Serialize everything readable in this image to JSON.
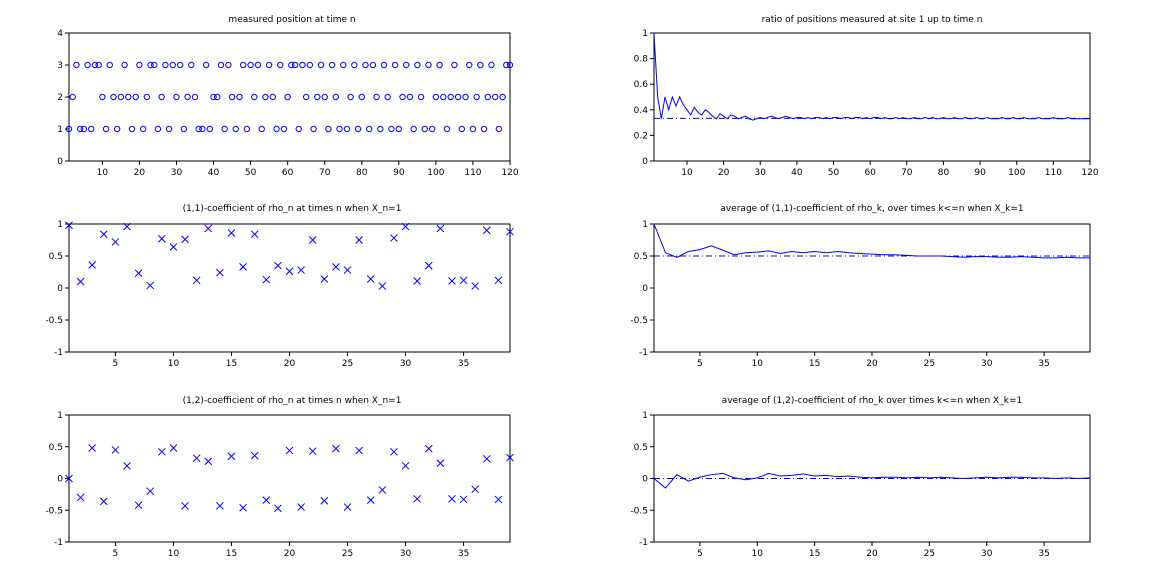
{
  "figure": {
    "colors": {
      "series": "#0000ff",
      "axes": "#000000",
      "background": "#ffffff"
    }
  },
  "chart_data": [
    {
      "id": "p1",
      "type": "scatter",
      "marker": "circle",
      "title": "measured position at time n",
      "xlim": [
        1,
        120
      ],
      "ylim": [
        0,
        4
      ],
      "xticks": [
        10,
        20,
        30,
        40,
        50,
        60,
        70,
        80,
        90,
        100,
        110,
        120
      ],
      "xtick_labels": [
        "10",
        "20",
        "30",
        "40",
        "50",
        "60",
        "70",
        "80",
        "90",
        "100",
        "110",
        "120"
      ],
      "yticks": [
        0,
        1,
        2,
        3,
        4
      ],
      "ytick_labels": [
        "0",
        "1",
        "2",
        "3",
        "4"
      ],
      "x_start": 1,
      "values": [
        1,
        2,
        3,
        1,
        1,
        3,
        1,
        3,
        3,
        2,
        1,
        3,
        2,
        1,
        2,
        3,
        2,
        1,
        2,
        3,
        1,
        2,
        3,
        3,
        1,
        2,
        3,
        1,
        3,
        2,
        3,
        1,
        2,
        3,
        2,
        1,
        1,
        3,
        1,
        2,
        2,
        3,
        1,
        3,
        2,
        1,
        2,
        3,
        1,
        3,
        2,
        3,
        1,
        2,
        3,
        2,
        1,
        3,
        1,
        2,
        3,
        3,
        1,
        3,
        2,
        3,
        1,
        2,
        3,
        2,
        1,
        3,
        2,
        1,
        3,
        1,
        2,
        3,
        1,
        2,
        3,
        1,
        3,
        2,
        1,
        3,
        2,
        1,
        3,
        1,
        2,
        3,
        2,
        1,
        3,
        2,
        1,
        3,
        1,
        2,
        3,
        2,
        1,
        2,
        3,
        2,
        1,
        2,
        3,
        1,
        2,
        3,
        1,
        2,
        3,
        2,
        1,
        2,
        3,
        3
      ]
    },
    {
      "id": "p2",
      "type": "line",
      "title": "ratio of positions measured at site 1 up to time n",
      "xlim": [
        1,
        120
      ],
      "ylim": [
        0,
        1
      ],
      "xticks": [
        10,
        20,
        30,
        40,
        50,
        60,
        70,
        80,
        90,
        100,
        110,
        120
      ],
      "xtick_labels": [
        "10",
        "20",
        "30",
        "40",
        "50",
        "60",
        "70",
        "80",
        "90",
        "100",
        "110",
        "120"
      ],
      "yticks": [
        0,
        0.2,
        0.4,
        0.6,
        0.8,
        1
      ],
      "ytick_labels": [
        "0",
        "0.2",
        "0.4",
        "0.6",
        "0.8",
        "1"
      ],
      "x_start": 1,
      "reference_line": 0.3333,
      "values": [
        1,
        0.5,
        0.33,
        0.5,
        0.4,
        0.5,
        0.43,
        0.5,
        0.44,
        0.4,
        0.36,
        0.42,
        0.38,
        0.36,
        0.4,
        0.38,
        0.35,
        0.33,
        0.37,
        0.35,
        0.33,
        0.36,
        0.35,
        0.33,
        0.34,
        0.35,
        0.33,
        0.32,
        0.33,
        0.34,
        0.33,
        0.34,
        0.35,
        0.34,
        0.33,
        0.34,
        0.35,
        0.34,
        0.33,
        0.34,
        0.34,
        0.33,
        0.34,
        0.33,
        0.34,
        0.34,
        0.33,
        0.34,
        0.33,
        0.34,
        0.34,
        0.33,
        0.34,
        0.34,
        0.33,
        0.34,
        0.34,
        0.33,
        0.34,
        0.33,
        0.34,
        0.34,
        0.33,
        0.34,
        0.33,
        0.33,
        0.34,
        0.33,
        0.34,
        0.33,
        0.33,
        0.34,
        0.33,
        0.33,
        0.34,
        0.33,
        0.34,
        0.33,
        0.33,
        0.34,
        0.33,
        0.33,
        0.34,
        0.33,
        0.33,
        0.34,
        0.33,
        0.33,
        0.34,
        0.33,
        0.33,
        0.34,
        0.33,
        0.33,
        0.33,
        0.34,
        0.33,
        0.33,
        0.34,
        0.33,
        0.33,
        0.34,
        0.33,
        0.33,
        0.33,
        0.34,
        0.33,
        0.33,
        0.33,
        0.34,
        0.33,
        0.33,
        0.33,
        0.34,
        0.33,
        0.33,
        0.33,
        0.33,
        0.33,
        0.33
      ]
    },
    {
      "id": "p3",
      "type": "scatter",
      "marker": "x",
      "title": "(1,1)-coefficient of rho_n at times n when X_n=1",
      "xlim": [
        1,
        39
      ],
      "ylim": [
        -1,
        1
      ],
      "xticks": [
        5,
        10,
        15,
        20,
        25,
        30,
        35
      ],
      "xtick_labels": [
        "5",
        "10",
        "15",
        "20",
        "25",
        "30",
        "35"
      ],
      "yticks": [
        -1,
        -0.5,
        0,
        0.5,
        1
      ],
      "ytick_labels": [
        "-1",
        "-0.5",
        "0",
        "0.5",
        "1"
      ],
      "x_start": 1,
      "values": [
        0.98,
        0.1,
        0.36,
        0.84,
        0.72,
        0.96,
        0.23,
        0.04,
        0.77,
        0.64,
        0.76,
        0.12,
        0.93,
        0.24,
        0.86,
        0.33,
        0.84,
        0.13,
        0.35,
        0.26,
        0.28,
        0.75,
        0.14,
        0.33,
        0.28,
        0.75,
        0.14,
        0.03,
        0.78,
        0.96,
        0.11,
        0.35,
        0.93,
        0.11,
        0.12,
        0.03,
        0.9,
        0.12,
        0.88
      ]
    },
    {
      "id": "p4",
      "type": "line",
      "title": "average of (1,1)-coefficient of rho_k, over times k<=n when X_k=1",
      "xlim": [
        1,
        39
      ],
      "ylim": [
        -1,
        1
      ],
      "xticks": [
        5,
        10,
        15,
        20,
        25,
        30,
        35
      ],
      "xtick_labels": [
        "5",
        "10",
        "15",
        "20",
        "25",
        "30",
        "35"
      ],
      "yticks": [
        -1,
        -0.5,
        0,
        0.5,
        1
      ],
      "ytick_labels": [
        "-1",
        "-0.5",
        "0",
        "0.5",
        "1"
      ],
      "x_start": 1,
      "reference_line": 0.5,
      "values": [
        1,
        0.55,
        0.48,
        0.57,
        0.6,
        0.66,
        0.59,
        0.52,
        0.55,
        0.56,
        0.58,
        0.54,
        0.57,
        0.55,
        0.57,
        0.55,
        0.57,
        0.55,
        0.54,
        0.53,
        0.52,
        0.52,
        0.51,
        0.5,
        0.5,
        0.5,
        0.49,
        0.48,
        0.49,
        0.49,
        0.48,
        0.48,
        0.49,
        0.48,
        0.47,
        0.47,
        0.48,
        0.47,
        0.47
      ]
    },
    {
      "id": "p5",
      "type": "scatter",
      "marker": "x",
      "title": "(1,2)-coefficient of rho_n at times n when X_n=1",
      "xlim": [
        1,
        39
      ],
      "ylim": [
        -1,
        1
      ],
      "xticks": [
        5,
        10,
        15,
        20,
        25,
        30,
        35
      ],
      "xtick_labels": [
        "5",
        "10",
        "15",
        "20",
        "25",
        "30",
        "35"
      ],
      "yticks": [
        -1,
        -0.5,
        0,
        0.5,
        1
      ],
      "ytick_labels": [
        "-1",
        "-0.5",
        "0",
        "0.5",
        "1"
      ],
      "x_start": 1,
      "values": [
        0,
        -0.3,
        0.48,
        -0.36,
        0.45,
        0.2,
        -0.42,
        -0.2,
        0.42,
        0.48,
        -0.43,
        0.32,
        0.27,
        -0.43,
        0.35,
        -0.46,
        0.36,
        -0.34,
        -0.47,
        0.44,
        -0.45,
        0.43,
        -0.35,
        0.47,
        -0.45,
        0.44,
        -0.34,
        -0.18,
        0.42,
        0.2,
        -0.32,
        0.47,
        0.24,
        -0.32,
        -0.33,
        -0.17,
        0.31,
        -0.33,
        0.33
      ]
    },
    {
      "id": "p6",
      "type": "line",
      "title": "average of (1,2)-coefficient of rho_k over times k<=n when X_k=1",
      "xlim": [
        1,
        39
      ],
      "ylim": [
        -1,
        1
      ],
      "xticks": [
        5,
        10,
        15,
        20,
        25,
        30,
        35
      ],
      "xtick_labels": [
        "5",
        "10",
        "15",
        "20",
        "25",
        "30",
        "35"
      ],
      "yticks": [
        -1,
        -0.5,
        0,
        0.5,
        1
      ],
      "ytick_labels": [
        "-1",
        "-0.5",
        "0",
        "0.5",
        "1"
      ],
      "x_start": 1,
      "reference_line": 0,
      "values": [
        0,
        -0.15,
        0.06,
        -0.04,
        0.02,
        0.06,
        0.08,
        0.01,
        -0.02,
        0.01,
        0.08,
        0.04,
        0.05,
        0.07,
        0.04,
        0.05,
        0.03,
        0.04,
        0.02,
        0.01,
        0.02,
        0.02,
        0.01,
        0.02,
        0.01,
        0.02,
        0.01,
        0.0,
        0.01,
        0.02,
        0.01,
        0.02,
        0.02,
        0.01,
        0.01,
        0.0,
        0.01,
        0.0,
        0.01
      ]
    }
  ]
}
